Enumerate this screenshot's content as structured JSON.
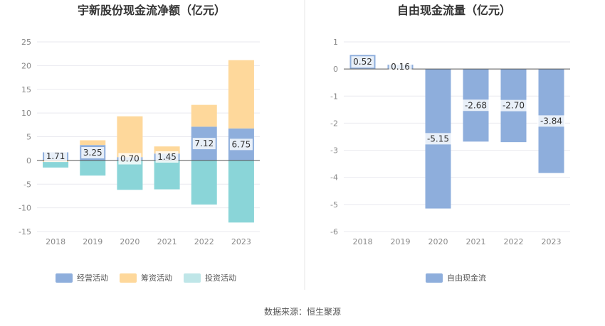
{
  "source_text": "数据来源：恒生聚源",
  "chart_data": [
    {
      "type": "bar",
      "stacked": true,
      "title": "宇新股份现金流净额（亿元）",
      "categories": [
        "2018",
        "2019",
        "2020",
        "2021",
        "2022",
        "2023"
      ],
      "ylim": [
        -15,
        25
      ],
      "yticks": [
        25,
        20,
        15,
        10,
        5,
        0,
        -5,
        -10,
        -15
      ],
      "grid": true,
      "legend_position": "bottom",
      "series": [
        {
          "name": "经营活动",
          "color": "#8eaedc",
          "values": [
            1.71,
            3.25,
            0.7,
            1.45,
            7.12,
            6.75
          ],
          "labels": [
            "1.71",
            "3.25",
            "0.70",
            "1.45",
            "7.12",
            "6.75"
          ]
        },
        {
          "name": "筹资活动",
          "color": "#fed89b",
          "values": [
            -0.3,
            1.0,
            8.6,
            1.5,
            4.6,
            14.4
          ]
        },
        {
          "name": "投资活动",
          "color": "#8ad5d8",
          "legend_color": "#bfe6e8",
          "values": [
            -1.2,
            -3.2,
            -6.2,
            -6.1,
            -9.3,
            -13.1
          ]
        }
      ]
    },
    {
      "type": "bar",
      "title": "自由现金流量（亿元）",
      "categories": [
        "2018",
        "2019",
        "2020",
        "2021",
        "2022",
        "2023"
      ],
      "ylim": [
        -6,
        1
      ],
      "yticks": [
        1,
        0,
        -1,
        -2,
        -3,
        -4,
        -5,
        -6
      ],
      "grid": true,
      "legend_position": "bottom",
      "series": [
        {
          "name": "自由现金流",
          "color": "#8eaedc",
          "values": [
            0.52,
            0.16,
            -5.15,
            -2.68,
            -2.7,
            -3.84
          ],
          "labels": [
            "0.52",
            "0.16",
            "-5.15",
            "-2.68",
            "-2.70",
            "-3.84"
          ]
        }
      ]
    }
  ]
}
